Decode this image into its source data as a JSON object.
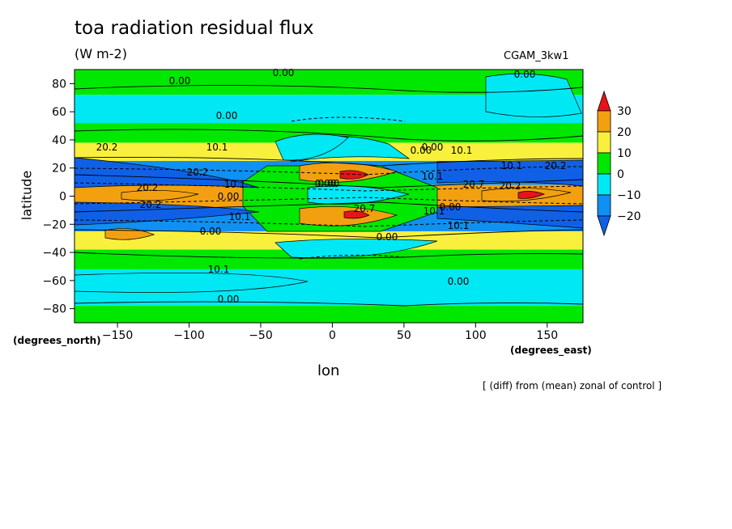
{
  "chart_data": {
    "type": "heatmap",
    "title": "toa radiation residual flux",
    "units": "(W m-2)",
    "run_label": "CGAM_3kw1",
    "xlabel": "lon",
    "ylabel": "latitude",
    "x_units_label": "(degrees_east)",
    "y_units_label": "(degrees_north)",
    "note": "[ (diff) from (mean) zonal of control ]",
    "xlim": [
      -180,
      175
    ],
    "ylim": [
      -90,
      90
    ],
    "x_ticks": [
      -150,
      -100,
      -50,
      0,
      50,
      100,
      150
    ],
    "y_ticks": [
      80,
      60,
      40,
      20,
      0,
      -20,
      -40,
      -60,
      -80
    ],
    "colorbar": {
      "levels": [
        30,
        20,
        10,
        0,
        -10,
        -20
      ],
      "colors": [
        "#e8121c",
        "#f2a010",
        "#f8f03c",
        "#00e800",
        "#00e8f4",
        "#1090f0",
        "#1060e6"
      ],
      "color_meaning": [
        "above 30",
        "20 to 30",
        "10 to 20",
        "0 to 10",
        "-10 to 0",
        "-20 to -10",
        "below -20"
      ]
    },
    "zonal_bands": [
      {
        "lat": [
          72,
          90
        ],
        "category": "0 to 10"
      },
      {
        "lat": [
          52,
          72
        ],
        "category": "-10 to 0"
      },
      {
        "lat": [
          38,
          52
        ],
        "category": "0 to 10"
      },
      {
        "lat": [
          25,
          38
        ],
        "category": "10 to 20"
      },
      {
        "lat": [
          8,
          25
        ],
        "category": "-20 to -10"
      },
      {
        "lat": [
          -8,
          8
        ],
        "category": "20 to 30"
      },
      {
        "lat": [
          -25,
          -8
        ],
        "category": "-20 to -10"
      },
      {
        "lat": [
          -38,
          -25
        ],
        "category": "10 to 20"
      },
      {
        "lat": [
          -52,
          -38
        ],
        "category": "0 to 10"
      },
      {
        "lat": [
          -78,
          -52
        ],
        "category": "-10 to 0"
      },
      {
        "lat": [
          -90,
          -78
        ],
        "category": "0 to 10"
      }
    ],
    "contour_labels": [
      "0.00",
      "0.00",
      "0.00",
      "0.00",
      "20.2",
      "10.1",
      "20.2",
      "10.1",
      "20.2",
      "10.1",
      "0.00",
      "20.2",
      "0.00",
      "10.1",
      "20.7",
      "0.00",
      "10.1",
      "20.2",
      "10.1",
      "20.2",
      "20.7",
      "10.1",
      "0.00",
      "0.00",
      "10.1",
      "0.00",
      "0.00",
      "10.1",
      "0.00",
      "0.00",
      "0.00"
    ]
  }
}
